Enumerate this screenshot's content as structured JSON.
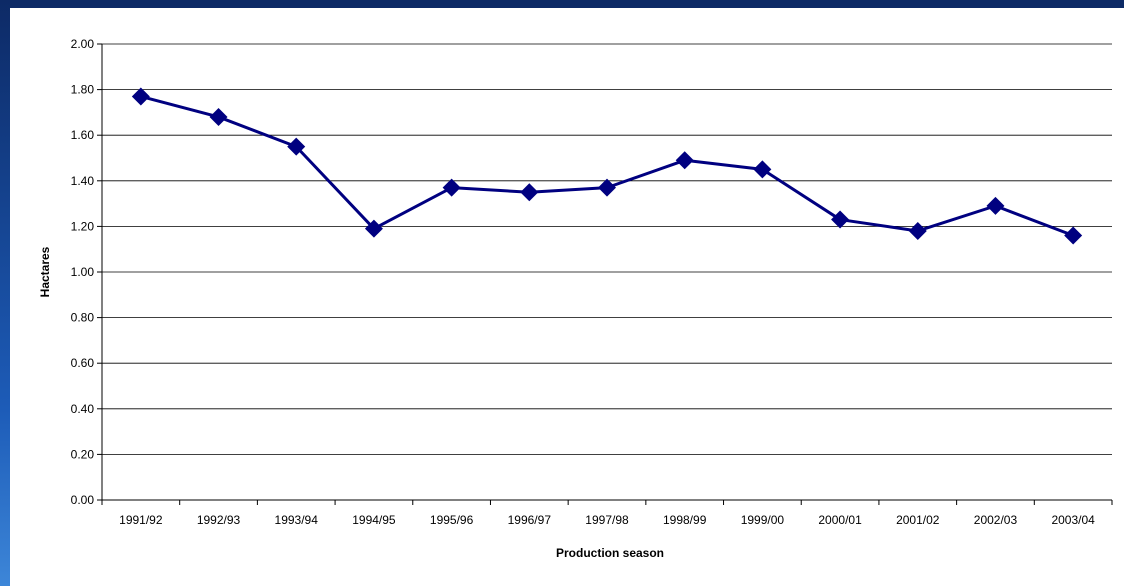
{
  "chart_data": {
    "type": "line",
    "title": "",
    "xlabel": "Production season",
    "ylabel": "Hactares",
    "categories": [
      "1991/92",
      "1992/93",
      "1993/94",
      "1994/95",
      "1995/96",
      "1996/97",
      "1997/98",
      "1998/99",
      "1999/00",
      "2000/01",
      "2001/02",
      "2002/03",
      "2003/04"
    ],
    "series": [
      {
        "values": [
          1.77,
          1.68,
          1.55,
          1.19,
          1.37,
          1.35,
          1.37,
          1.49,
          1.45,
          1.23,
          1.18,
          1.29,
          1.16
        ]
      }
    ],
    "ylim": [
      0,
      2
    ],
    "yticks": [
      "0.00",
      "0.20",
      "0.40",
      "0.60",
      "0.80",
      "1.00",
      "1.20",
      "1.40",
      "1.60",
      "1.80",
      "2.00"
    ],
    "grid": true,
    "legend": "none",
    "colors": {
      "line": "#000080",
      "marker": "#000080",
      "grid": "#000000"
    }
  }
}
